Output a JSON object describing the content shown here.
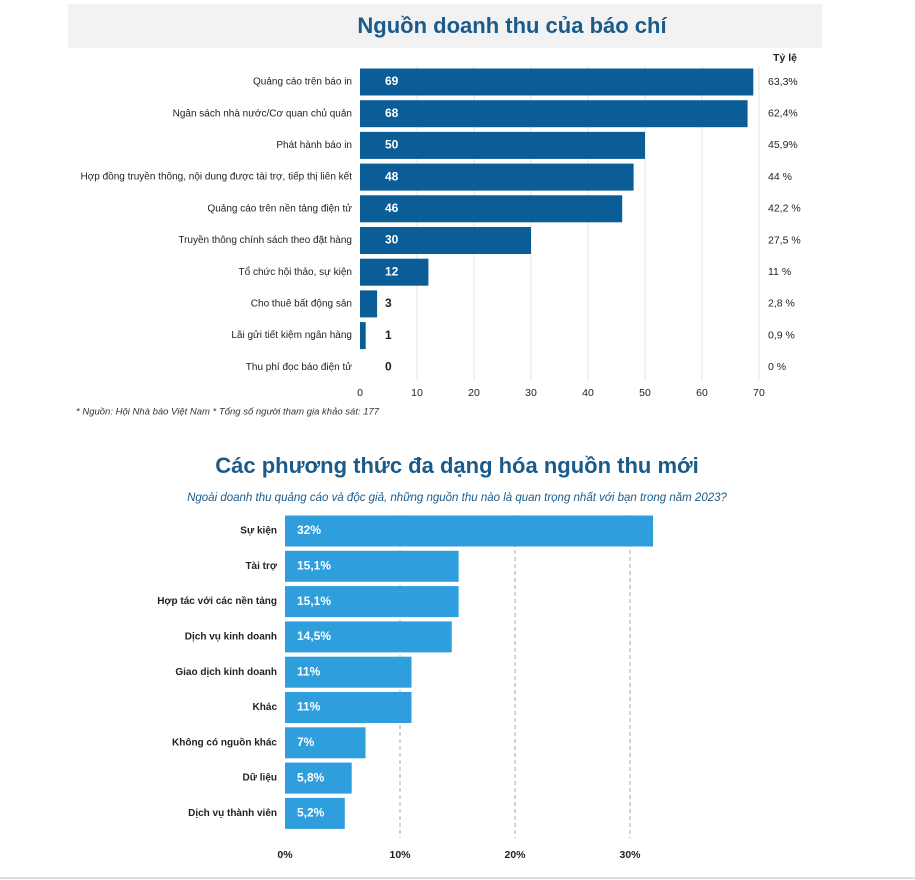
{
  "chart_data": [
    {
      "type": "bar",
      "orientation": "horizontal",
      "title": "Nguồn doanh thu của báo chí",
      "categories": [
        "Quảng cáo trên báo in",
        "Ngân sách nhà nước/Cơ quan chủ quản",
        "Phát hành báo in",
        "Hợp đồng truyền thông, nội dung được tài trợ, tiếp thị liên kết",
        "Quảng cáo trên nền tảng điện tử",
        "Truyền thông chính sách theo đặt hàng",
        "Tổ chức hội thảo, sự kiện",
        "Cho thuê bất động sản",
        "Lãi gửi tiết kiệm ngân hàng",
        "Thu phí đọc báo điện tử"
      ],
      "values": [
        69,
        68,
        50,
        48,
        46,
        30,
        12,
        3,
        1,
        0
      ],
      "share_header": "Tỷ lệ",
      "shares": [
        "63,3%",
        "62,4%",
        "45,9%",
        "44 %",
        "42,2 %",
        "27,5 %",
        "11 %",
        "2,8 %",
        "0,9 %",
        "0 %"
      ],
      "color": "#0a5d96",
      "xlim": [
        0,
        70
      ],
      "xticks": [
        0,
        10,
        20,
        30,
        40,
        50,
        60,
        70
      ],
      "grid": "solid",
      "note": "*  Nguồn: Hội Nhà báo Việt Nam * Tổng số người tham gia khảo sát: 177"
    },
    {
      "type": "bar",
      "orientation": "horizontal",
      "title": "Các phương thức đa dạng hóa nguồn thu mới",
      "subtitle": "Ngoài doanh thu quảng cáo và độc giả, những nguồn thu nào là quan trọng nhất với bạn trong năm 2023?",
      "categories": [
        "Sự kiện",
        "Tài trợ",
        "Hợp tác với các nền tảng",
        "Dịch vụ kinh doanh",
        "Giao dịch kinh doanh",
        "Khác",
        "Không có nguồn khác",
        "Dữ liệu",
        "Dịch vụ thành viên"
      ],
      "values": [
        32,
        15.1,
        15.1,
        14.5,
        11,
        11,
        7,
        5.8,
        5.2
      ],
      "value_labels": [
        "32%",
        "15,1%",
        "15,1%",
        "14,5%",
        "11%",
        "11%",
        "7%",
        "5,8%",
        "5,2%"
      ],
      "color": "#2e9fdc",
      "xlim": [
        0,
        32
      ],
      "xticks": [
        {
          "value": 0,
          "label": "0%"
        },
        {
          "value": 10,
          "label": "10%"
        },
        {
          "value": 20,
          "label": "20%"
        },
        {
          "value": 30,
          "label": "30%"
        }
      ],
      "grid": "dashed"
    }
  ]
}
